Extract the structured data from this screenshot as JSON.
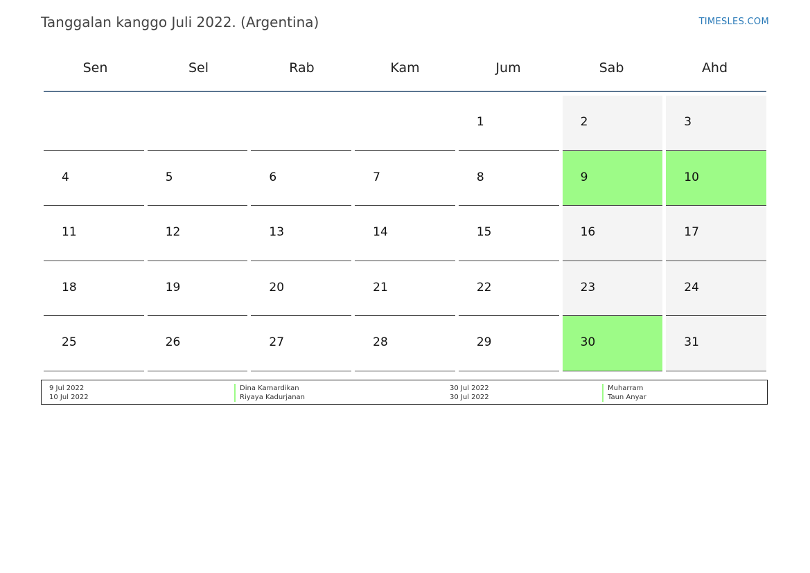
{
  "header": {
    "title": "Tanggalan kanggo Juli 2022. (Argentina)",
    "site": "TIMESLES.COM"
  },
  "calendar": {
    "weekdays": [
      "Sen",
      "Sel",
      "Rab",
      "Kam",
      "Jum",
      "Sab",
      "Ahd"
    ],
    "colors": {
      "holiday": "#9dfb87",
      "weekend": "#f4f4f4",
      "header_rule": "#5a7591"
    },
    "weeks": [
      [
        {
          "day": ""
        },
        {
          "day": ""
        },
        {
          "day": ""
        },
        {
          "day": ""
        },
        {
          "day": "1"
        },
        {
          "day": "2",
          "type": "weekend"
        },
        {
          "day": "3",
          "type": "weekend"
        }
      ],
      [
        {
          "day": "4"
        },
        {
          "day": "5"
        },
        {
          "day": "6"
        },
        {
          "day": "7"
        },
        {
          "day": "8"
        },
        {
          "day": "9",
          "type": "holiday"
        },
        {
          "day": "10",
          "type": "holiday"
        }
      ],
      [
        {
          "day": "11"
        },
        {
          "day": "12"
        },
        {
          "day": "13"
        },
        {
          "day": "14"
        },
        {
          "day": "15"
        },
        {
          "day": "16",
          "type": "weekend"
        },
        {
          "day": "17",
          "type": "weekend"
        }
      ],
      [
        {
          "day": "18"
        },
        {
          "day": "19"
        },
        {
          "day": "20"
        },
        {
          "day": "21"
        },
        {
          "day": "22"
        },
        {
          "day": "23",
          "type": "weekend"
        },
        {
          "day": "24",
          "type": "weekend"
        }
      ],
      [
        {
          "day": "25"
        },
        {
          "day": "26"
        },
        {
          "day": "27"
        },
        {
          "day": "28"
        },
        {
          "day": "29"
        },
        {
          "day": "30",
          "type": "holiday"
        },
        {
          "day": "31",
          "type": "weekend"
        }
      ]
    ]
  },
  "legend": {
    "left": {
      "dates": [
        "9 Jul 2022",
        "10 Jul 2022"
      ],
      "names": [
        "Dina Kamardikan",
        "Riyaya Kadurjanan"
      ]
    },
    "right": {
      "dates": [
        "30 Jul 2022",
        "30 Jul 2022"
      ],
      "names": [
        "Muharram",
        "Taun Anyar"
      ]
    }
  }
}
